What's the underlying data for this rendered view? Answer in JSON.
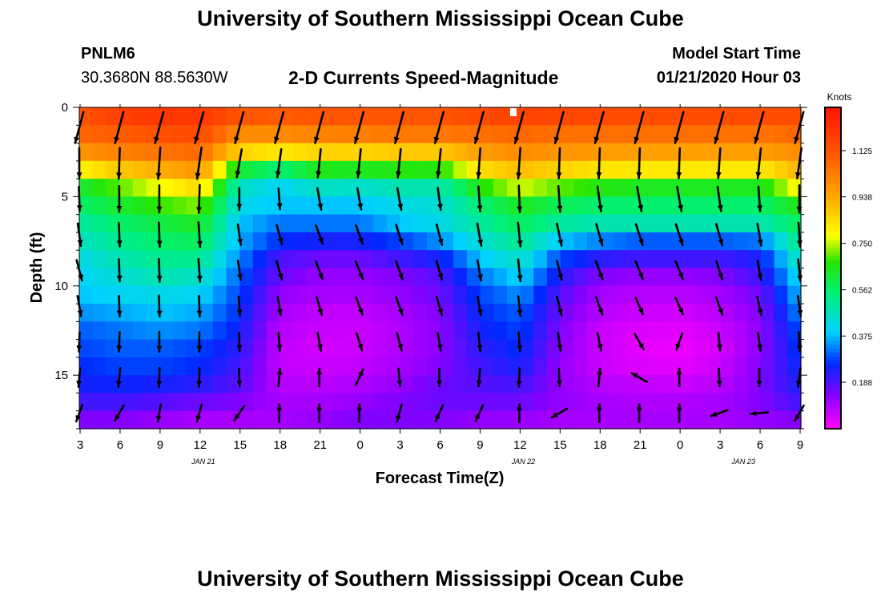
{
  "header": {
    "title": "University of Southern Mississippi Ocean Cube",
    "station_id": "PNLM6",
    "coordinates": "30.3680N 88.5630W",
    "subtitle": "2-D Currents Speed-Magnitude",
    "model_start_label": "Model Start Time",
    "model_start_value": "01/21/2020 Hour 03"
  },
  "footer": {
    "title": "University of Southern Mississippi Ocean Cube"
  },
  "chart_data": {
    "type": "heatmap",
    "title": "2-D Currents Speed-Magnitude",
    "xlabel": "Forecast Time(Z)",
    "ylabel": "Depth (ft)",
    "x_tick_labels": [
      "3",
      "6",
      "9",
      "12",
      "15",
      "18",
      "21",
      "0",
      "3",
      "6",
      "9",
      "12",
      "15",
      "18",
      "21",
      "0",
      "3",
      "6",
      "9"
    ],
    "date_labels": [
      {
        "text": "JAN 21",
        "tick_index": 3
      },
      {
        "text": "JAN 22",
        "tick_index": 11
      },
      {
        "text": "JAN 23",
        "tick_index": 16.5
      }
    ],
    "y_ticks": [
      0,
      5,
      10,
      15
    ],
    "ylim": [
      18,
      0
    ],
    "colorbar": {
      "unit": "Knots",
      "ticks": [
        "1.125",
        "0.938",
        "0.750",
        "0.562",
        "0.375",
        "0.188"
      ],
      "range": [
        0,
        1.3
      ]
    },
    "speed_layers": [
      {
        "depth": 0.5,
        "values": [
          1.12,
          1.18,
          1.2,
          1.2,
          1.12,
          1.1,
          1.12,
          1.12,
          1.12,
          1.12,
          1.15,
          1.17,
          1.16,
          1.15,
          1.14,
          1.14,
          1.14,
          1.14,
          1.14
        ]
      },
      {
        "depth": 1.5,
        "values": [
          1.08,
          1.1,
          1.13,
          1.15,
          1.0,
          1.0,
          1.02,
          1.03,
          1.04,
          1.04,
          1.06,
          1.08,
          1.06,
          1.06,
          1.06,
          1.06,
          1.06,
          1.05,
          1.08
        ]
      },
      {
        "depth": 2.5,
        "values": [
          0.98,
          1.02,
          1.05,
          1.07,
          0.86,
          0.82,
          0.86,
          0.86,
          0.88,
          0.88,
          0.96,
          1.0,
          0.98,
          0.97,
          0.96,
          0.96,
          0.96,
          0.96,
          1.0
        ]
      },
      {
        "depth": 3.5,
        "values": [
          0.8,
          0.88,
          0.93,
          0.98,
          0.62,
          0.55,
          0.65,
          0.64,
          0.66,
          0.66,
          0.84,
          0.9,
          0.86,
          0.83,
          0.82,
          0.82,
          0.82,
          0.82,
          0.92
        ]
      },
      {
        "depth": 4.5,
        "values": [
          0.62,
          0.7,
          0.78,
          0.85,
          0.46,
          0.4,
          0.46,
          0.45,
          0.48,
          0.48,
          0.66,
          0.76,
          0.7,
          0.66,
          0.64,
          0.64,
          0.64,
          0.64,
          0.8
        ]
      },
      {
        "depth": 5.5,
        "values": [
          0.56,
          0.62,
          0.68,
          0.72,
          0.42,
          0.38,
          0.38,
          0.38,
          0.42,
          0.44,
          0.55,
          0.64,
          0.58,
          0.56,
          0.56,
          0.56,
          0.56,
          0.56,
          0.66
        ]
      },
      {
        "depth": 6.5,
        "values": [
          0.5,
          0.56,
          0.6,
          0.64,
          0.38,
          0.32,
          0.32,
          0.32,
          0.38,
          0.42,
          0.5,
          0.58,
          0.5,
          0.48,
          0.48,
          0.48,
          0.48,
          0.48,
          0.58
        ]
      },
      {
        "depth": 7.5,
        "values": [
          0.46,
          0.52,
          0.56,
          0.58,
          0.36,
          0.26,
          0.24,
          0.24,
          0.28,
          0.34,
          0.44,
          0.52,
          0.38,
          0.33,
          0.3,
          0.3,
          0.3,
          0.32,
          0.54
        ]
      },
      {
        "depth": 8.5,
        "values": [
          0.42,
          0.48,
          0.52,
          0.52,
          0.33,
          0.19,
          0.16,
          0.16,
          0.2,
          0.24,
          0.38,
          0.46,
          0.28,
          0.22,
          0.2,
          0.2,
          0.2,
          0.24,
          0.48
        ]
      },
      {
        "depth": 9.5,
        "values": [
          0.4,
          0.44,
          0.48,
          0.46,
          0.3,
          0.16,
          0.12,
          0.12,
          0.14,
          0.18,
          0.32,
          0.4,
          0.22,
          0.14,
          0.12,
          0.12,
          0.14,
          0.2,
          0.42
        ]
      },
      {
        "depth": 10.5,
        "values": [
          0.38,
          0.4,
          0.42,
          0.4,
          0.28,
          0.12,
          0.1,
          0.1,
          0.12,
          0.16,
          0.28,
          0.34,
          0.18,
          0.1,
          0.08,
          0.08,
          0.1,
          0.16,
          0.38
        ]
      },
      {
        "depth": 11.5,
        "values": [
          0.34,
          0.36,
          0.38,
          0.36,
          0.26,
          0.1,
          0.07,
          0.07,
          0.1,
          0.14,
          0.26,
          0.3,
          0.16,
          0.08,
          0.06,
          0.05,
          0.08,
          0.14,
          0.34
        ]
      },
      {
        "depth": 12.5,
        "values": [
          0.3,
          0.32,
          0.34,
          0.32,
          0.24,
          0.08,
          0.06,
          0.06,
          0.09,
          0.13,
          0.24,
          0.28,
          0.14,
          0.06,
          0.04,
          0.03,
          0.06,
          0.13,
          0.3
        ]
      },
      {
        "depth": 13.5,
        "values": [
          0.28,
          0.3,
          0.3,
          0.28,
          0.22,
          0.07,
          0.05,
          0.06,
          0.09,
          0.13,
          0.22,
          0.26,
          0.13,
          0.06,
          0.03,
          0.02,
          0.05,
          0.13,
          0.28
        ]
      },
      {
        "depth": 14.5,
        "values": [
          0.26,
          0.28,
          0.28,
          0.26,
          0.2,
          0.07,
          0.06,
          0.07,
          0.1,
          0.14,
          0.2,
          0.24,
          0.12,
          0.06,
          0.04,
          0.03,
          0.06,
          0.14,
          0.26
        ]
      },
      {
        "depth": 15.5,
        "values": [
          0.24,
          0.25,
          0.24,
          0.22,
          0.18,
          0.08,
          0.08,
          0.09,
          0.12,
          0.16,
          0.18,
          0.2,
          0.12,
          0.08,
          0.07,
          0.06,
          0.08,
          0.14,
          0.24
        ]
      },
      {
        "depth": 16.5,
        "values": [
          0.2,
          0.2,
          0.18,
          0.16,
          0.14,
          0.1,
          0.1,
          0.12,
          0.14,
          0.16,
          0.16,
          0.16,
          0.12,
          0.1,
          0.09,
          0.09,
          0.1,
          0.14,
          0.2
        ]
      },
      {
        "depth": 17.5,
        "values": [
          0.14,
          0.14,
          0.12,
          0.1,
          0.1,
          0.1,
          0.12,
          0.14,
          0.14,
          0.14,
          0.12,
          0.12,
          0.1,
          0.1,
          0.1,
          0.1,
          0.1,
          0.12,
          0.14
        ]
      }
    ],
    "vector_depths": [
      0.5,
      2.5,
      4.5,
      6.5,
      8.5,
      10.5,
      12.5,
      14.5,
      16.5
    ],
    "vector_directions_deg": [
      [
        195,
        195,
        195,
        195,
        195,
        195,
        195,
        195,
        195,
        195,
        195,
        195,
        195,
        195,
        195,
        195,
        195,
        195,
        195
      ],
      [
        180,
        182,
        184,
        188,
        190,
        188,
        186,
        186,
        186,
        186,
        184,
        184,
        182,
        182,
        182,
        182,
        184,
        186,
        188
      ],
      [
        178,
        180,
        180,
        182,
        180,
        176,
        170,
        170,
        170,
        172,
        176,
        178,
        176,
        172,
        170,
        170,
        172,
        176,
        180
      ],
      [
        172,
        178,
        178,
        176,
        172,
        165,
        160,
        160,
        162,
        165,
        170,
        174,
        168,
        164,
        162,
        162,
        164,
        170,
        176
      ],
      [
        165,
        178,
        178,
        176,
        172,
        164,
        160,
        158,
        160,
        164,
        170,
        174,
        166,
        160,
        158,
        158,
        162,
        170,
        174
      ],
      [
        170,
        178,
        178,
        178,
        176,
        170,
        164,
        160,
        160,
        164,
        170,
        174,
        166,
        160,
        156,
        156,
        160,
        168,
        172
      ],
      [
        182,
        182,
        180,
        180,
        178,
        176,
        170,
        162,
        165,
        170,
        174,
        176,
        172,
        168,
        150,
        200,
        175,
        172,
        176
      ],
      [
        185,
        186,
        182,
        182,
        178,
        5,
        0,
        25,
        175,
        180,
        184,
        182,
        178,
        5,
        300,
        0,
        178,
        180,
        188
      ],
      [
        200,
        210,
        190,
        195,
        215,
        0,
        0,
        0,
        195,
        205,
        205,
        0,
        240,
        0,
        0,
        0,
        250,
        265,
        210
      ]
    ],
    "vector_magnitudes": [
      [
        1.15,
        1.18,
        1.2,
        1.2,
        1.12,
        1.12,
        1.12,
        1.12,
        1.12,
        1.12,
        1.15,
        1.17,
        1.16,
        1.15,
        1.14,
        1.14,
        1.14,
        1.14,
        1.14
      ],
      [
        0.98,
        1.02,
        1.05,
        1.07,
        0.86,
        0.86,
        0.86,
        0.86,
        0.88,
        0.88,
        0.96,
        1.0,
        0.98,
        0.97,
        0.96,
        0.96,
        0.96,
        0.96,
        1.0
      ],
      [
        0.62,
        0.7,
        0.78,
        0.85,
        0.46,
        0.4,
        0.46,
        0.45,
        0.48,
        0.48,
        0.66,
        0.76,
        0.7,
        0.66,
        0.64,
        0.64,
        0.64,
        0.64,
        0.8
      ],
      [
        0.5,
        0.56,
        0.6,
        0.64,
        0.38,
        0.32,
        0.32,
        0.32,
        0.38,
        0.42,
        0.5,
        0.58,
        0.5,
        0.48,
        0.48,
        0.48,
        0.48,
        0.48,
        0.58
      ],
      [
        0.42,
        0.48,
        0.52,
        0.52,
        0.33,
        0.3,
        0.28,
        0.28,
        0.3,
        0.3,
        0.38,
        0.46,
        0.32,
        0.3,
        0.28,
        0.28,
        0.28,
        0.3,
        0.48
      ],
      [
        0.38,
        0.4,
        0.42,
        0.4,
        0.28,
        0.26,
        0.24,
        0.24,
        0.26,
        0.26,
        0.28,
        0.34,
        0.26,
        0.24,
        0.22,
        0.22,
        0.24,
        0.26,
        0.38
      ],
      [
        0.3,
        0.32,
        0.34,
        0.32,
        0.24,
        0.22,
        0.22,
        0.22,
        0.22,
        0.22,
        0.24,
        0.28,
        0.22,
        0.2,
        0.18,
        0.18,
        0.2,
        0.22,
        0.3
      ],
      [
        0.26,
        0.28,
        0.28,
        0.26,
        0.2,
        0.18,
        0.18,
        0.18,
        0.18,
        0.18,
        0.2,
        0.24,
        0.18,
        0.16,
        0.16,
        0.16,
        0.18,
        0.18,
        0.26
      ],
      [
        0.2,
        0.2,
        0.18,
        0.16,
        0.16,
        0.14,
        0.14,
        0.14,
        0.14,
        0.16,
        0.16,
        0.16,
        0.14,
        0.14,
        0.14,
        0.14,
        0.14,
        0.16,
        0.2
      ]
    ],
    "colors": {
      "background": "#ffffff",
      "axis": "#000000",
      "vectors": "#000000",
      "missing_marker": "#ffffff"
    }
  }
}
